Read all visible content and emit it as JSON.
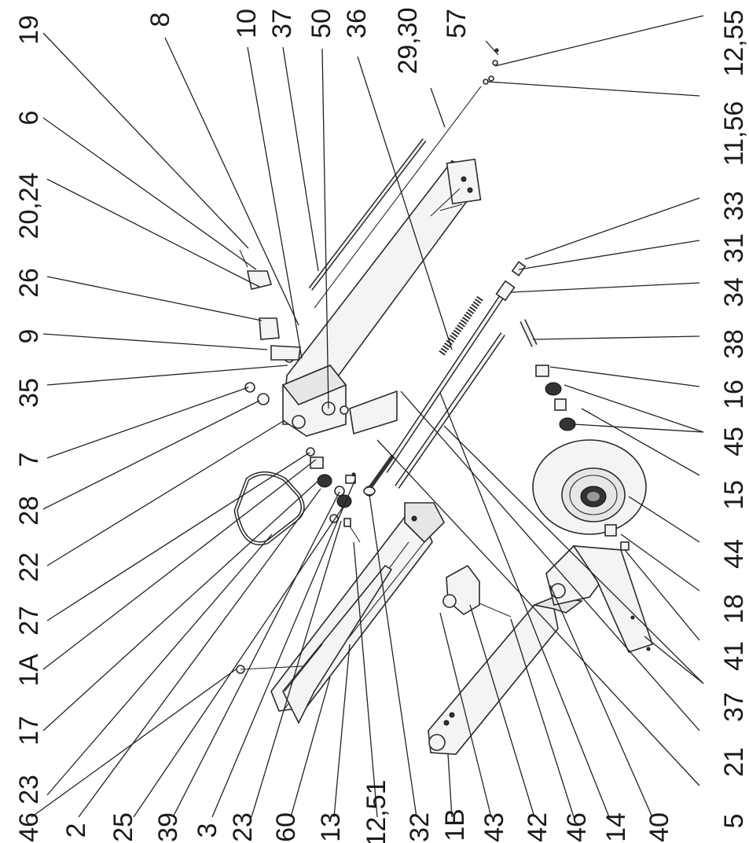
{
  "labels": {
    "top": [
      "19",
      "6",
      "20,24",
      "26",
      "9",
      "35",
      "7",
      "28",
      "22",
      "27",
      "1A",
      "17",
      "23"
    ],
    "top_right": [
      "8",
      "10",
      "37",
      "50",
      "36",
      "29,30",
      "57",
      "12,55",
      "11,56",
      "33",
      "31",
      "34",
      "38",
      "16",
      "45",
      "15",
      "44",
      "18",
      "41",
      "37",
      "21",
      "5"
    ],
    "bottom": [
      "46",
      "2",
      "25",
      "39",
      "3",
      "23",
      "60",
      "13",
      "12,51",
      "32",
      "1B",
      "43",
      "42",
      "46",
      "14",
      "40"
    ]
  }
}
